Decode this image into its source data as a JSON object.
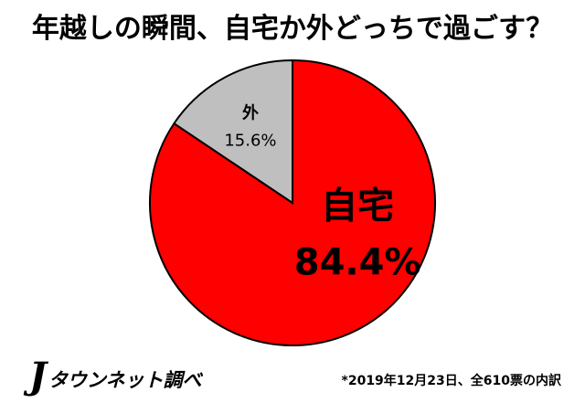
{
  "chart_data": {
    "type": "pie",
    "title": "年越しの瞬間、自宅か外どっちで過ごす？",
    "slices": [
      {
        "label": "自宅",
        "value": 84.4,
        "value_label": "84.4%",
        "color": "#ff0000"
      },
      {
        "label": "外",
        "value": 15.6,
        "value_label": "15.6%",
        "color": "#bfbfbf"
      }
    ],
    "start": "12 o'clock",
    "direction": "clockwise",
    "legend": "none"
  },
  "brand": {
    "logo_mark": "J",
    "logo_text": "タウンネット調べ"
  },
  "footnote": "*2019年12月23日、全610票の内訳"
}
